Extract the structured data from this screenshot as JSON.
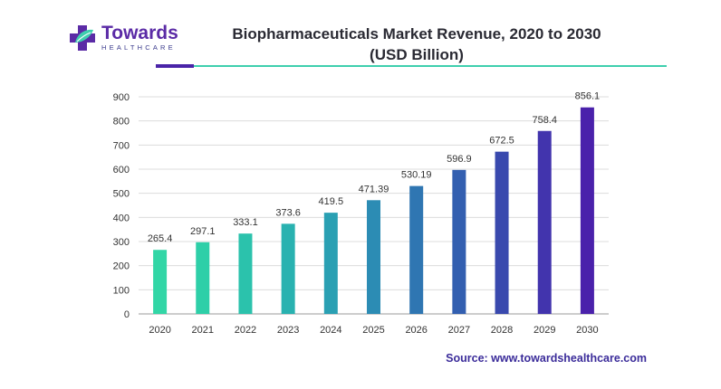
{
  "brand": {
    "name": "Towards",
    "tagline": "HEALTHCARE"
  },
  "header": {
    "title_line1": "Biopharmaceuticals Market Revenue, 2020 to 2030",
    "title_line2": "(USD Billion)"
  },
  "footer": {
    "source": "Source: www.towardshealthcare.com"
  },
  "colors": {
    "accent_purple": "#4a24a8",
    "accent_teal": "#3ecfae",
    "gradient_start": "#32d8a8",
    "gradient_end": "#4a1fb0"
  },
  "chart_data": {
    "type": "bar",
    "title": "Biopharmaceuticals Market Revenue, 2020 to 2030 (USD Billion)",
    "xlabel": "",
    "ylabel": "",
    "ylim": [
      0,
      900
    ],
    "yticks": [
      0,
      100,
      200,
      300,
      400,
      500,
      600,
      700,
      800,
      900
    ],
    "grid": true,
    "categories": [
      "2020",
      "2021",
      "2022",
      "2023",
      "2024",
      "2025",
      "2026",
      "2027",
      "2028",
      "2029",
      "2030"
    ],
    "values": [
      265.4,
      297.1,
      333.1,
      373.6,
      419.5,
      471.39,
      530.19,
      596.9,
      672.5,
      758.4,
      856.1
    ],
    "value_labels": [
      "265.4",
      "297.1",
      "333.1",
      "373.6",
      "419.5",
      "471.39",
      "530.19",
      "596.9",
      "672.5",
      "758.4",
      "856.1"
    ],
    "bar_colors": [
      "#32d6a6",
      "#2ecfa8",
      "#2bc2ac",
      "#29b2b0",
      "#2aa0b3",
      "#2c8cb4",
      "#2f76b2",
      "#335fb0",
      "#3949ae",
      "#4234ad",
      "#4a21ab"
    ]
  }
}
